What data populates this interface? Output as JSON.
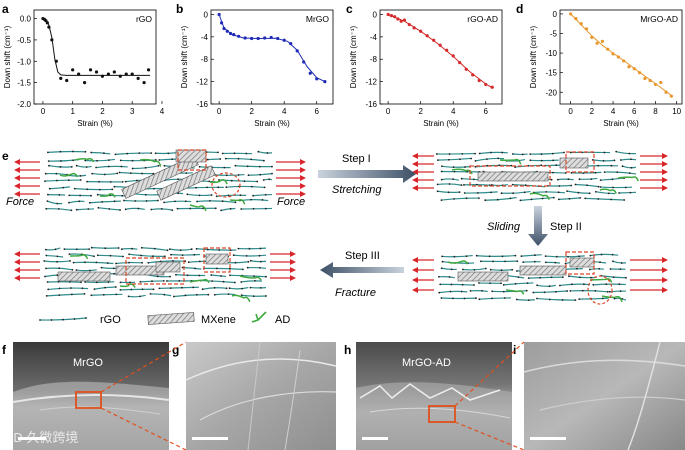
{
  "panel_letters": {
    "a": "a",
    "b": "b",
    "c": "c",
    "d": "d",
    "e": "e",
    "f": "f",
    "g": "g",
    "h": "h",
    "i": "i"
  },
  "colors": {
    "rgo": "#111111",
    "mrgo": "#1f2bb5",
    "rgoad": "#d62a2a",
    "mrgoad": "#e8962a",
    "arrow_red": "#d9262a",
    "ad_green": "#3fa83f",
    "rgo_chain": "#2e8b8b",
    "dashed_box": "#d9462a",
    "step_arrow": "#5b6f86"
  },
  "chart_data": [
    {
      "type": "scatter",
      "title": "rGO",
      "xlabel": "Strain (%)",
      "ylabel": "Down shift (cm⁻¹)",
      "xlim": [
        -0.3,
        3.8
      ],
      "ylim": [
        -2.0,
        0.2
      ],
      "xticks": [
        0,
        1,
        2,
        3,
        4
      ],
      "yticks": [
        0.0,
        -0.5,
        -1.0,
        -1.5,
        -2.0
      ],
      "ytick_labels": [
        "0.0",
        "-0.5",
        "-1.0",
        "-1.5",
        "-2.0"
      ],
      "x": [
        0.0,
        0.05,
        0.1,
        0.15,
        0.2,
        0.3,
        0.45,
        0.6,
        0.8,
        1.0,
        1.2,
        1.4,
        1.6,
        1.8,
        2.0,
        2.2,
        2.4,
        2.6,
        2.8,
        3.0,
        3.2,
        3.4,
        3.55
      ],
      "y": [
        0.0,
        -0.02,
        -0.05,
        -0.1,
        -0.2,
        -0.5,
        -1.0,
        -1.4,
        -1.45,
        -1.2,
        -1.3,
        -1.5,
        -1.2,
        -1.25,
        -1.35,
        -1.3,
        -1.25,
        -1.35,
        -1.3,
        -1.3,
        -1.4,
        -1.5,
        -1.2
      ],
      "fit_x": [
        0.0,
        0.1,
        0.2,
        0.3,
        0.4,
        0.5,
        0.6,
        0.8,
        1.2,
        2.0,
        3.0,
        3.6
      ],
      "fit_y": [
        0.0,
        -0.05,
        -0.15,
        -0.45,
        -0.95,
        -1.25,
        -1.32,
        -1.33,
        -1.33,
        -1.33,
        -1.33,
        -1.33
      ]
    },
    {
      "type": "scatter",
      "title": "MrGO",
      "xlabel": "Strain (%)",
      "ylabel": "Down shift (cm⁻¹)",
      "xlim": [
        -0.5,
        7.0
      ],
      "ylim": [
        -16,
        0.8
      ],
      "xticks": [
        0,
        2,
        4,
        6
      ],
      "yticks": [
        0,
        -4,
        -8,
        -12,
        -16
      ],
      "ytick_labels": [
        "0",
        "-4",
        "-8",
        "-12",
        "-16"
      ],
      "x": [
        0.0,
        0.15,
        0.3,
        0.5,
        0.7,
        0.9,
        1.2,
        1.6,
        2.0,
        2.4,
        2.8,
        3.2,
        3.6,
        4.0,
        4.4,
        4.8,
        5.2,
        5.6,
        6.0,
        6.5
      ],
      "y": [
        0.0,
        -1.5,
        -2.5,
        -3.0,
        -3.4,
        -3.6,
        -3.9,
        -4.2,
        -4.3,
        -4.3,
        -4.2,
        -4.1,
        -4.3,
        -4.6,
        -5.2,
        -6.5,
        -8.5,
        -10.5,
        -11.5,
        -12.0
      ],
      "fit_x": [
        0.0,
        0.3,
        0.8,
        1.5,
        2.5,
        3.5,
        4.2,
        4.8,
        5.4,
        6.0,
        6.5
      ],
      "fit_y": [
        0.0,
        -2.4,
        -3.6,
        -4.2,
        -4.3,
        -4.25,
        -4.8,
        -6.4,
        -9.3,
        -11.3,
        -12.0
      ]
    },
    {
      "type": "scatter",
      "title": "rGO-AD",
      "xlabel": "Strain (%)",
      "ylabel": "Down shift (cm⁻¹)",
      "xlim": [
        -0.5,
        7.0
      ],
      "ylim": [
        -16,
        0.8
      ],
      "xticks": [
        0,
        2,
        4,
        6
      ],
      "yticks": [
        0,
        -4,
        -8,
        -12,
        -16
      ],
      "ytick_labels": [
        "0",
        "-4",
        "-8",
        "-12",
        "-16"
      ],
      "x": [
        0.0,
        0.2,
        0.4,
        0.6,
        0.8,
        1.0,
        1.3,
        1.6,
        2.0,
        2.4,
        2.8,
        3.2,
        3.6,
        4.0,
        4.4,
        4.8,
        5.2,
        5.6,
        6.0,
        6.4
      ],
      "y": [
        0.0,
        -0.2,
        -0.4,
        -0.8,
        -1.2,
        -1.0,
        -1.8,
        -2.4,
        -3.0,
        -3.8,
        -4.6,
        -5.5,
        -6.4,
        -7.4,
        -8.6,
        -9.8,
        -10.8,
        -11.8,
        -12.5,
        -13.0
      ],
      "fit_x": [
        0.0,
        1.0,
        2.0,
        3.0,
        4.0,
        5.0,
        6.0,
        6.4
      ],
      "fit_y": [
        0.0,
        -1.2,
        -3.0,
        -5.1,
        -7.5,
        -10.2,
        -12.4,
        -13.1
      ]
    },
    {
      "type": "scatter",
      "title": "MrGO-AD",
      "xlabel": "Strain (%)",
      "ylabel": "Down shift (cm⁻¹)",
      "xlim": [
        -1.0,
        10.5
      ],
      "ylim": [
        -23,
        1.0
      ],
      "xticks": [
        0,
        2,
        4,
        6,
        8,
        10
      ],
      "yticks": [
        0,
        -5,
        -10,
        -15,
        -20
      ],
      "ytick_labels": [
        "0",
        "-5",
        "-10",
        "-15",
        "-20"
      ],
      "x": [
        0.0,
        0.5,
        1.0,
        1.5,
        2.0,
        2.5,
        3.0,
        3.5,
        4.0,
        4.5,
        5.0,
        5.5,
        6.0,
        6.5,
        7.0,
        7.5,
        8.0,
        8.5,
        9.0,
        9.5
      ],
      "y": [
        0.0,
        -1.2,
        -2.5,
        -3.8,
        -6.0,
        -7.5,
        -7.0,
        -9.0,
        -10.2,
        -11.0,
        -12.0,
        -13.5,
        -14.0,
        -15.0,
        -16.5,
        -17.0,
        -18.0,
        -17.5,
        -20.0,
        -21.0
      ],
      "fit_x": [
        0.0,
        1.0,
        2.0,
        3.0,
        4.0,
        5.0,
        6.0,
        7.0,
        8.0,
        9.0,
        9.6
      ],
      "fit_y": [
        0.0,
        -2.8,
        -5.6,
        -8.0,
        -10.0,
        -11.9,
        -13.9,
        -15.9,
        -17.8,
        -19.8,
        -21.0
      ]
    }
  ],
  "diagram": {
    "force_left": "Force",
    "force_right": "Force",
    "step1": "Step I",
    "step1_sub": "Stretching",
    "step2": "Step II",
    "step2_sub": "Sliding",
    "step3": "Step III",
    "step3_sub": "Fracture",
    "legend_rgo": "rGO",
    "legend_mxene": "MXene",
    "legend_ad": "AD"
  },
  "images": {
    "f_label": "MrGO",
    "h_label": "MrGO-AD",
    "watermark": "CD 久微跨境"
  }
}
